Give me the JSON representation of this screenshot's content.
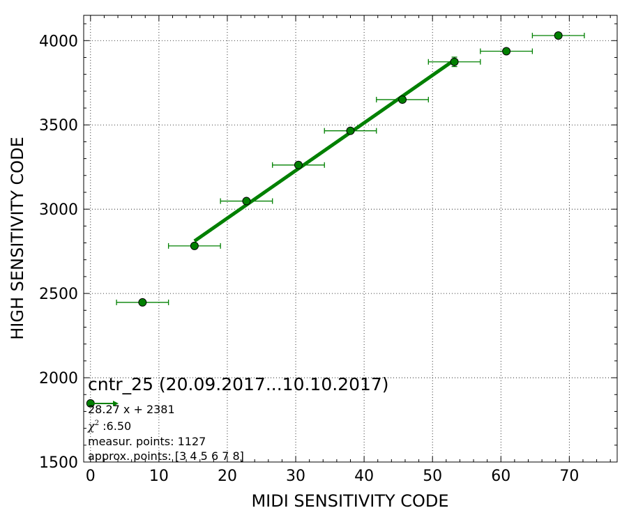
{
  "chart_data": {
    "type": "scatter",
    "title": "",
    "xlabel": "MIDI SENSITIVITY CODE",
    "ylabel": "HIGH SENSITIVITY CODE",
    "xlim": [
      -1,
      77
    ],
    "ylim": [
      1500,
      4150
    ],
    "xticks": [
      0,
      10,
      20,
      30,
      40,
      50,
      60,
      70
    ],
    "yticks": [
      1500,
      2000,
      2500,
      3000,
      3500,
      4000
    ],
    "grid": true,
    "colors": {
      "series": "#008000",
      "fit": "#008000",
      "marker_edge": "#000000"
    },
    "series": [
      {
        "x": [
          0,
          7.6,
          15.2,
          22.8,
          30.4,
          38.0,
          45.6,
          53.2,
          60.8,
          68.4
        ],
        "y": [
          1848,
          2447,
          2782,
          3048,
          3262,
          3465,
          3650,
          3874,
          3937,
          4030
        ],
        "xerr": [
          0,
          3.8,
          3.8,
          3.8,
          3.8,
          3.8,
          3.8,
          3.8,
          3.8,
          3.8
        ],
        "yerr": [
          0,
          0,
          0,
          0,
          18,
          10,
          10,
          28,
          0,
          0
        ]
      }
    ],
    "fit": {
      "slope": 28.27,
      "intercept": 2381,
      "x_range": [
        15.2,
        53.2
      ]
    },
    "annotation": {
      "title": "cntr_25 (20.09.2017...10.10.2017)",
      "fit_label": "28.27 x + 2381",
      "chi_label": "χ",
      "chi_sup": "2",
      "chi_value": " :6.50",
      "measur_points": "measur. points: 1127",
      "approx_points": "approx. points: [3 4 5 6 7 8]"
    }
  }
}
